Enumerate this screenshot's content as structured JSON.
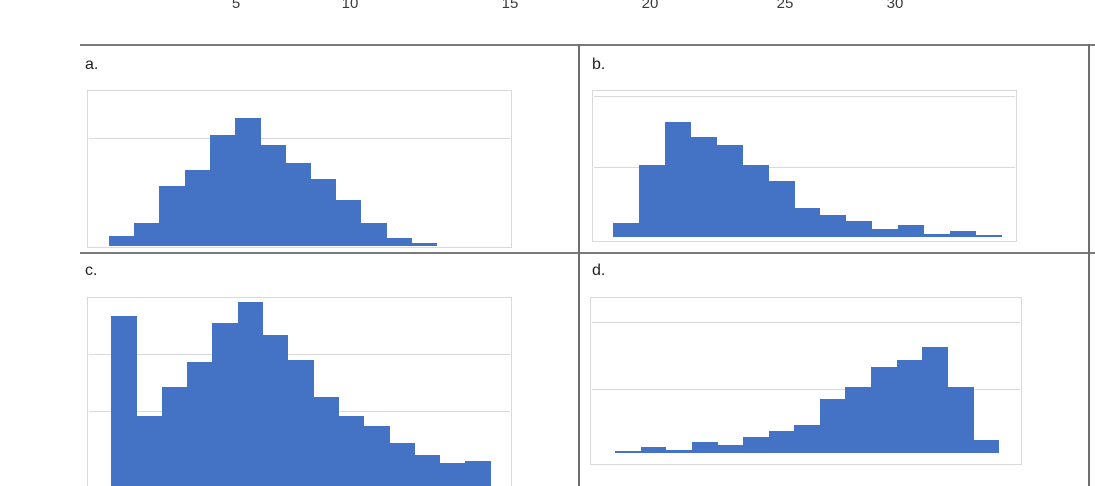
{
  "top_axis": {
    "description": "bottom edge of axis tick labels from a chart cropped off above",
    "ticks": [
      "5",
      "10",
      "15",
      "20",
      "25",
      "30"
    ]
  },
  "panels": [
    {
      "id": "a",
      "label": "a."
    },
    {
      "id": "b",
      "label": "b."
    },
    {
      "id": "c",
      "label": "c."
    },
    {
      "id": "d",
      "label": "d."
    }
  ],
  "style": {
    "bar_color": "#4472C4",
    "gridline_color": "#d9d9d9",
    "chart_border_color": "#d9d9d9",
    "divider_color": "#7a7a7a"
  },
  "chart_data": [
    {
      "panel": "a",
      "type": "bar",
      "subtype": "histogram",
      "distribution": "approximately symmetric, bell-shaped, single peak near center",
      "bins": 13,
      "values_relative_to_max": [
        8,
        18,
        47,
        59,
        87,
        100,
        79,
        65,
        52,
        36,
        18,
        6,
        2
      ],
      "x_tick_labels": "none visible",
      "y_tick_labels": "none visible",
      "gridlines_horizontal": 1,
      "legend": "none"
    },
    {
      "panel": "b",
      "type": "bar",
      "subtype": "histogram",
      "distribution": "right-skewed, peak near left, long right tail with small bumps",
      "bins": 15,
      "values_relative_to_max": [
        12,
        63,
        100,
        87,
        80,
        63,
        49,
        25,
        19,
        14,
        7,
        10,
        3,
        5,
        2
      ],
      "x_tick_labels": "none visible",
      "y_tick_labels": "none visible",
      "gridlines_horizontal": 2,
      "legend": "none"
    },
    {
      "panel": "c",
      "type": "bar",
      "subtype": "histogram",
      "distribution": "bimodal: tall first bar, dip, then bell-shaped mound peaking near center then declining; bottom of plot cropped by screenshot edge",
      "bins": 15,
      "values_relative_to_max": [
        93,
        45,
        59,
        71,
        90,
        100,
        84,
        72,
        54,
        45,
        40,
        32,
        26,
        22,
        23
      ],
      "x_tick_labels": "none visible",
      "y_tick_labels": "none visible",
      "gridlines_horizontal": 2,
      "legend": "none"
    },
    {
      "panel": "d",
      "type": "bar",
      "subtype": "histogram",
      "distribution": "left-skewed, long left tail rising to peak near right then sharp drop",
      "bins": 15,
      "values_relative_to_max": [
        2,
        6,
        3,
        10,
        8,
        15,
        21,
        26,
        51,
        62,
        81,
        88,
        100,
        62,
        12
      ],
      "x_tick_labels": "none visible",
      "y_tick_labels": "none visible",
      "gridlines_horizontal": 2,
      "legend": "none"
    }
  ]
}
